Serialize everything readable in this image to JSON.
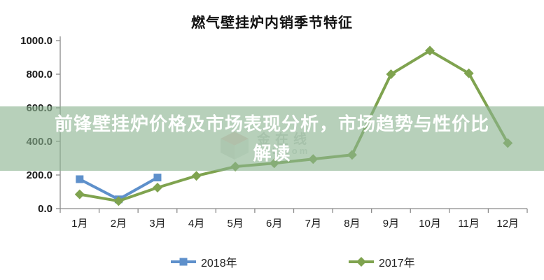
{
  "title": "燃气壁挂炉内销季节特征",
  "overlay": {
    "line1": "前锋壁挂炉价格及市场表现分析，市场趋势与性价比",
    "line2": "解读",
    "background": "rgba(139,179,144,0.62)"
  },
  "watermark": {
    "text_line1": "金在线",
    "text_line2": "L.com"
  },
  "legend": {
    "items": [
      {
        "label": "2018年"
      },
      {
        "label": "2017年"
      }
    ]
  },
  "chart_data": {
    "type": "line",
    "title": "燃气壁挂炉内销季节特征",
    "categories": [
      "1月",
      "2月",
      "3月",
      "4月",
      "5月",
      "6月",
      "7月",
      "8月",
      "9月",
      "10月",
      "11月",
      "12月"
    ],
    "series": [
      {
        "name": "2018年",
        "color": "#5E90CB",
        "marker": "square",
        "values": [
          175,
          55,
          185,
          null,
          null,
          null,
          null,
          null,
          null,
          null,
          null,
          null
        ]
      },
      {
        "name": "2017年",
        "color": "#7FA34F",
        "marker": "diamond",
        "values": [
          85,
          45,
          125,
          195,
          250,
          270,
          295,
          320,
          800,
          940,
          805,
          390
        ]
      }
    ],
    "xlabel": "",
    "ylabel": "",
    "ylim": [
      0,
      1000
    ],
    "ytick_step": 200,
    "ytick_decimals": 1,
    "grid": false,
    "legend_position": "bottom",
    "axis_color": "#8a8a8a",
    "tick_label_color": "#1a1a1a"
  }
}
